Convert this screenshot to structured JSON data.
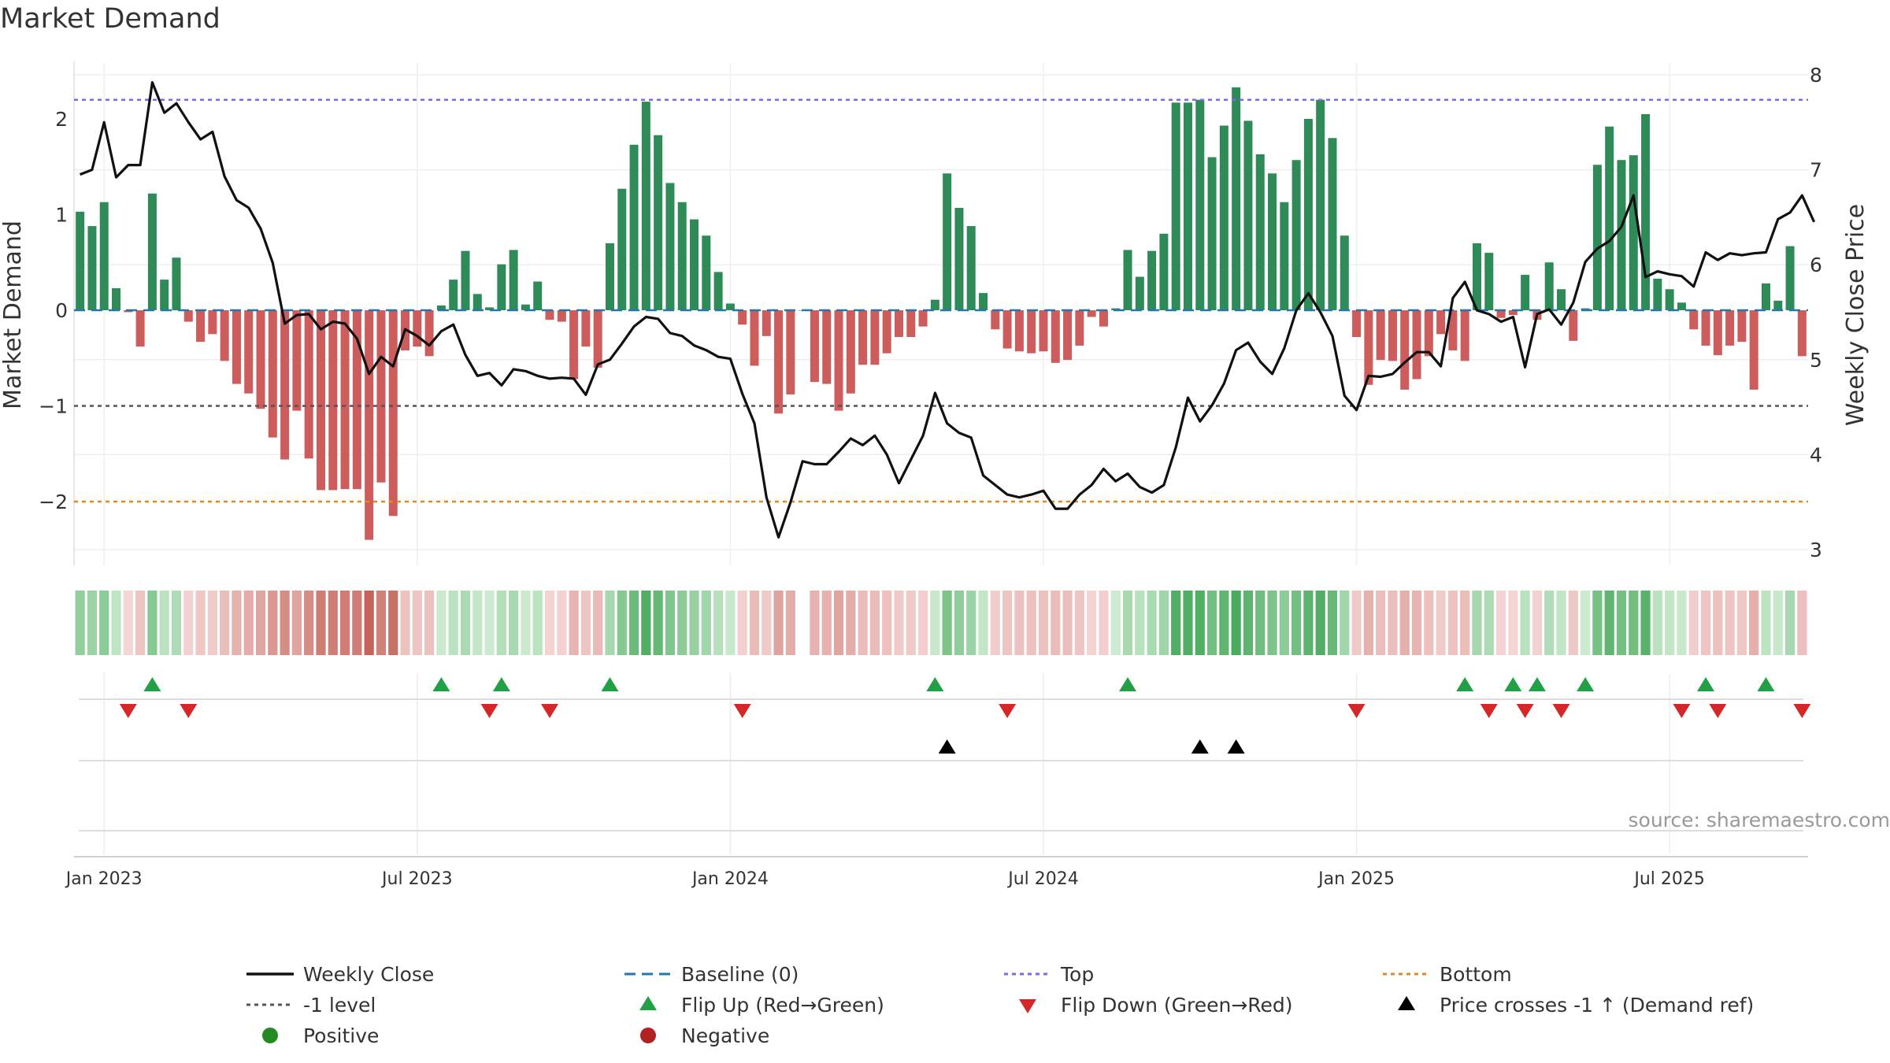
{
  "title": "Market Demand",
  "source": "source: sharemaestro.com",
  "chart_data": {
    "type": "bar+line",
    "title": "Market Demand",
    "ylabel_left": "Market Demand",
    "ylabel_right": "Weekly Close Price",
    "ylim_left": [
      -2.6,
      2.6
    ],
    "ylim_right": [
      2.8,
      8.1
    ],
    "left_ticks": [
      2,
      1,
      0,
      -1,
      -2
    ],
    "left_tick_labels": [
      "2",
      "1",
      "0",
      "−1",
      "−2"
    ],
    "right_ticks": [
      8,
      7,
      6,
      5,
      4,
      3
    ],
    "right_tick_labels": [
      "8",
      "7",
      "6",
      "5",
      "4",
      "3"
    ],
    "x_ticks": [
      {
        "week": 2,
        "label": "Jan 2023"
      },
      {
        "week": 28,
        "label": "Jul 2023"
      },
      {
        "week": 54,
        "label": "Jan 2024"
      },
      {
        "week": 80,
        "label": "Jul 2024"
      },
      {
        "week": 106,
        "label": "Jan 2025"
      },
      {
        "week": 132,
        "label": "Jul 2025"
      }
    ],
    "reference_lines": {
      "top": 2.2,
      "minus_one": -1,
      "bottom": -2,
      "baseline": 0
    },
    "demand": [
      1.03,
      0.88,
      1.13,
      0.23,
      -0.02,
      -0.38,
      1.22,
      0.32,
      0.55,
      -0.12,
      -0.33,
      -0.25,
      -0.53,
      -0.77,
      -0.87,
      -1.03,
      -1.33,
      -1.56,
      -1.05,
      -1.55,
      -1.88,
      -1.88,
      -1.87,
      -1.87,
      -2.4,
      -1.8,
      -2.15,
      -0.42,
      -0.38,
      -0.48,
      0.05,
      0.32,
      0.62,
      0.17,
      0.03,
      0.48,
      0.63,
      0.06,
      0.3,
      -0.1,
      -0.12,
      -0.72,
      -0.38,
      -0.6,
      0.7,
      1.27,
      1.73,
      2.18,
      1.83,
      1.33,
      1.13,
      0.95,
      0.78,
      0.4,
      0.07,
      -0.15,
      -0.58,
      -0.27,
      -1.08,
      -0.88,
      0,
      -0.75,
      -0.77,
      -1.05,
      -0.87,
      -0.57,
      -0.57,
      -0.45,
      -0.28,
      -0.28,
      -0.17,
      0.11,
      1.43,
      1.07,
      0.88,
      0.18,
      -0.2,
      -0.4,
      -0.43,
      -0.45,
      -0.43,
      -0.55,
      -0.52,
      -0.37,
      -0.07,
      -0.17,
      0.02,
      0.63,
      0.35,
      0.62,
      0.8,
      2.17,
      2.17,
      2.2,
      1.6,
      1.93,
      2.33,
      1.98,
      1.63,
      1.43,
      1.13,
      1.57,
      2.0,
      2.2,
      1.8,
      0.78,
      -0.28,
      -0.78,
      -0.52,
      -0.53,
      -0.83,
      -0.72,
      -0.48,
      -0.25,
      -0.42,
      -0.53,
      0.7,
      0.6,
      -0.08,
      -0.05,
      0.37,
      -0.1,
      0.5,
      0.22,
      -0.32,
      0.02,
      1.52,
      1.92,
      1.57,
      1.62,
      2.05,
      0.33,
      0.22,
      0.08,
      -0.2,
      -0.37,
      -0.47,
      -0.37,
      -0.33,
      -0.83,
      0.28,
      0.1,
      0.67,
      -0.48
    ],
    "weekly_close": [
      6.95,
      7,
      7.5,
      6.92,
      7.05,
      7.05,
      7.92,
      7.6,
      7.7,
      7.5,
      7.32,
      7.4,
      6.93,
      6.68,
      6.6,
      6.38,
      6.02,
      5.38,
      5.47,
      5.48,
      5.32,
      5.4,
      5.38,
      5.22,
      4.85,
      5.03,
      4.93,
      5.32,
      5.25,
      5.15,
      5.3,
      5.37,
      5.05,
      4.83,
      4.86,
      4.73,
      4.9,
      4.88,
      4.83,
      4.8,
      4.81,
      4.8,
      4.63,
      4.95,
      5.0,
      5.17,
      5.35,
      5.45,
      5.43,
      5.28,
      5.25,
      5.15,
      5.1,
      5.03,
      5.01,
      4.64,
      4.33,
      3.55,
      3.13,
      3.5,
      3.93,
      3.9,
      3.9,
      4.03,
      4.17,
      4.1,
      4.2,
      4.0,
      3.7,
      3.95,
      4.2,
      4.65,
      4.33,
      4.23,
      4.18,
      3.78,
      3.68,
      3.58,
      3.55,
      3.58,
      3.62,
      3.43,
      3.43,
      3.58,
      3.68,
      3.85,
      3.72,
      3.8,
      3.66,
      3.6,
      3.68,
      4.08,
      4.6,
      4.35,
      4.52,
      4.75,
      5.1,
      5.18,
      4.98,
      4.85,
      5.12,
      5.52,
      5.7,
      5.5,
      5.25,
      4.62,
      4.47,
      4.83,
      4.82,
      4.85,
      4.97,
      5.08,
      5.08,
      4.93,
      5.65,
      5.82,
      5.52,
      5.48,
      5.4,
      5.45,
      4.92,
      5.48,
      5.53,
      5.37,
      5.6,
      6.03,
      6.17,
      6.25,
      6.4,
      6.73,
      5.87,
      5.93,
      5.9,
      5.88,
      5.77,
      6.13,
      6.05,
      6.12,
      6.1,
      6.12,
      6.13,
      6.48,
      6.55,
      6.73,
      6.45
    ],
    "flip_up_weeks": [
      6,
      30,
      35,
      44,
      71,
      87,
      115,
      119,
      121,
      125,
      135,
      140
    ],
    "flip_down_weeks": [
      4,
      9,
      34,
      39,
      55,
      77,
      106,
      117,
      120,
      123,
      133,
      136,
      143
    ],
    "price_cross_weeks": [
      72,
      93,
      96
    ],
    "legend": [
      [
        "Weekly Close",
        "Baseline (0)",
        "Top",
        "Bottom"
      ],
      [
        "-1 level",
        "Flip Up (Red→Green)",
        "Flip Down (Green→Red)",
        "Price crosses -1 ↑ (Demand ref)"
      ],
      [
        "Positive",
        "Negative"
      ]
    ],
    "colors": {
      "positive_bar": "#2e8b57",
      "negative_bar": "#cd5c5c",
      "close_line": "#111111",
      "top_line": "#7b68ee",
      "minus_one_line": "#555555",
      "bottom_line": "#e08a1e",
      "baseline": "#1f77b4",
      "flip_up": "#22a045",
      "flip_down": "#d62728",
      "cross": "#000000",
      "positive_dot": "#228b22",
      "negative_dot": "#b22222"
    }
  }
}
